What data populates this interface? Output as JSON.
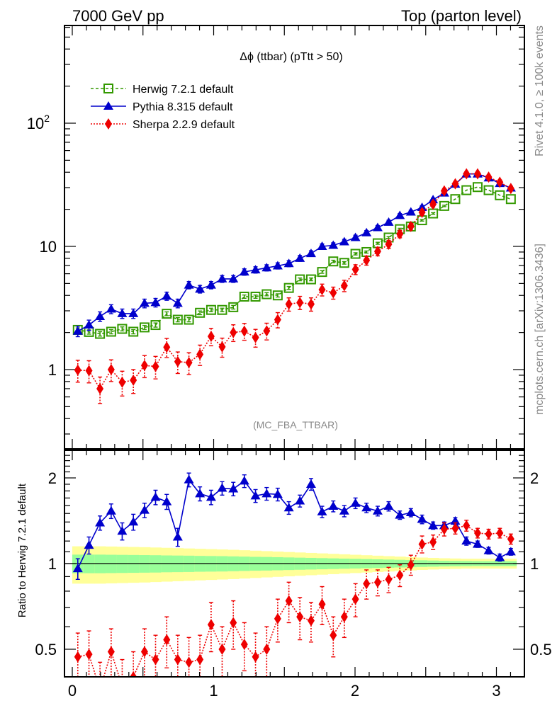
{
  "chart_data": [
    {
      "panel": "main",
      "type": "line",
      "title": "Δϕ (ttbar) (pTtt > 50)",
      "header_left": "7000 GeV pp",
      "header_right": "Top (parton level)",
      "analysis_label": "(MC_FBA_TTBAR)",
      "side_label_top": "Rivet 4.1.0, ≥ 100k events",
      "side_label_bottom": "mcplots.cern.ch [arXiv:1306.3436]",
      "xlabel": "",
      "ylabel": "",
      "xlim": [
        -0.06,
        3.2
      ],
      "ylim": [
        0.23,
        620
      ],
      "yscale": "log",
      "y_ticks": [
        {
          "value": 1,
          "label": "1"
        },
        {
          "value": 10,
          "label": "10"
        },
        {
          "value": 100,
          "label": "10",
          "sup": "2"
        }
      ],
      "legend_position": "top-left",
      "x": [
        0.039,
        0.118,
        0.196,
        0.275,
        0.353,
        0.432,
        0.511,
        0.589,
        0.668,
        0.746,
        0.825,
        0.903,
        0.982,
        1.06,
        1.139,
        1.217,
        1.296,
        1.375,
        1.453,
        1.532,
        1.61,
        1.689,
        1.767,
        1.846,
        1.924,
        2.003,
        2.081,
        2.16,
        2.238,
        2.317,
        2.395,
        2.474,
        2.552,
        2.631,
        2.709,
        2.788,
        2.867,
        2.945,
        3.024,
        3.102
      ],
      "series": [
        {
          "name": "Herwig 7.2.1 default",
          "color": "#339900",
          "marker": "open-square",
          "linestyle": "dashed",
          "values": [
            2.1,
            2.02,
            1.95,
            2.03,
            2.14,
            2.03,
            2.2,
            2.3,
            2.84,
            2.54,
            2.54,
            2.89,
            3.05,
            3.05,
            3.21,
            3.91,
            3.91,
            4.09,
            4.0,
            4.6,
            5.4,
            5.4,
            6.2,
            7.55,
            7.35,
            8.7,
            9.0,
            10.6,
            11.8,
            13.8,
            14.5,
            16.3,
            18.5,
            21.3,
            24.2,
            28.6,
            30.3,
            28.6,
            26.0,
            24.2
          ],
          "errors": [
            0.08,
            0.08,
            0.08,
            0.08,
            0.08,
            0.08,
            0.08,
            0.09,
            0.1,
            0.1,
            0.1,
            0.1,
            0.1,
            0.1,
            0.11,
            0.12,
            0.12,
            0.12,
            0.12,
            0.13,
            0.14,
            0.14,
            0.15,
            0.17,
            0.17,
            0.18,
            0.18,
            0.2,
            0.21,
            0.23,
            0.24,
            0.25,
            0.27,
            0.29,
            0.31,
            0.34,
            0.35,
            0.34,
            0.32,
            0.31
          ]
        },
        {
          "name": "Pythia 8.315 default",
          "color": "#0000cc",
          "marker": "filled-triangle",
          "linestyle": "solid",
          "values": [
            2.05,
            2.3,
            2.7,
            3.1,
            2.85,
            2.85,
            3.45,
            3.5,
            3.95,
            3.45,
            4.85,
            4.5,
            4.85,
            5.45,
            5.45,
            6.2,
            6.45,
            6.7,
            6.95,
            7.25,
            8.0,
            8.75,
            10.0,
            10.2,
            10.9,
            11.8,
            12.9,
            14.2,
            15.7,
            17.8,
            19.0,
            20.7,
            23.9,
            27.1,
            32.0,
            38.7,
            38.7,
            36.0,
            32.4,
            29.8
          ],
          "errors": [
            0.2,
            0.22,
            0.24,
            0.26,
            0.25,
            0.25,
            0.28,
            0.28,
            0.3,
            0.28,
            0.33,
            0.32,
            0.33,
            0.35,
            0.35,
            0.37,
            0.38,
            0.39,
            0.4,
            0.41,
            0.43,
            0.45,
            0.48,
            0.48,
            0.5,
            0.52,
            0.54,
            0.57,
            0.6,
            0.64,
            0.66,
            0.69,
            0.74,
            0.79,
            0.86,
            0.94,
            0.94,
            0.91,
            0.86,
            0.83
          ]
        },
        {
          "name": "Sherpa 2.2.9 default",
          "color": "#ee0000",
          "marker": "filled-diamond",
          "linestyle": "dotted",
          "values": [
            0.99,
            0.98,
            0.7,
            1.0,
            0.79,
            0.82,
            1.08,
            1.06,
            1.52,
            1.16,
            1.14,
            1.33,
            1.86,
            1.53,
            2.0,
            2.05,
            1.82,
            2.06,
            2.54,
            3.4,
            3.5,
            3.4,
            4.45,
            4.2,
            4.8,
            6.5,
            7.7,
            9.1,
            10.4,
            12.6,
            14.5,
            18.9,
            22.0,
            28.2,
            32.2,
            38.8,
            38.8,
            36.5,
            33.2,
            29.5
          ],
          "errors": [
            0.2,
            0.2,
            0.17,
            0.2,
            0.18,
            0.18,
            0.22,
            0.22,
            0.27,
            0.23,
            0.23,
            0.25,
            0.3,
            0.27,
            0.31,
            0.32,
            0.3,
            0.32,
            0.36,
            0.42,
            0.43,
            0.42,
            0.49,
            0.47,
            0.51,
            0.6,
            0.66,
            0.72,
            0.78,
            0.86,
            0.93,
            1.06,
            1.15,
            1.31,
            1.4,
            1.55,
            1.55,
            1.5,
            1.42,
            1.35
          ]
        }
      ]
    },
    {
      "panel": "ratio",
      "type": "line",
      "ylabel": "Ratio to Herwig 7.2.1 default",
      "xlabel": "",
      "xlim": [
        -0.06,
        3.2
      ],
      "ylim": [
        0.4,
        2.5
      ],
      "yscale": "log",
      "x_ticks": [
        {
          "value": 0,
          "label": "0"
        },
        {
          "value": 1,
          "label": "1"
        },
        {
          "value": 2,
          "label": "2"
        },
        {
          "value": 3,
          "label": "3"
        }
      ],
      "y_ticks": [
        {
          "value": 0.5,
          "label": "0.5"
        },
        {
          "value": 1,
          "label": "1"
        },
        {
          "value": 2,
          "label": "2"
        }
      ],
      "reference_line": 1,
      "band": {
        "green_color": "#99ff99",
        "yellow_color": "#ffff99",
        "green_halfwidth": [
          0.075,
          0.075,
          0.075,
          0.074,
          0.073,
          0.072,
          0.071,
          0.07,
          0.068,
          0.067,
          0.066,
          0.064,
          0.063,
          0.062,
          0.06,
          0.058,
          0.056,
          0.055,
          0.053,
          0.051,
          0.049,
          0.047,
          0.045,
          0.043,
          0.041,
          0.039,
          0.037,
          0.035,
          0.033,
          0.031,
          0.029,
          0.027,
          0.025,
          0.023,
          0.022,
          0.021,
          0.02,
          0.02,
          0.02,
          0.02
        ],
        "yellow_halfwidth": [
          0.15,
          0.15,
          0.15,
          0.148,
          0.146,
          0.144,
          0.142,
          0.139,
          0.136,
          0.133,
          0.13,
          0.127,
          0.124,
          0.121,
          0.118,
          0.114,
          0.11,
          0.106,
          0.102,
          0.098,
          0.094,
          0.09,
          0.086,
          0.082,
          0.078,
          0.074,
          0.07,
          0.066,
          0.062,
          0.058,
          0.054,
          0.05,
          0.047,
          0.044,
          0.042,
          0.04,
          0.04,
          0.04,
          0.04,
          0.04
        ]
      },
      "series": [
        {
          "name": "Pythia 8.315 default",
          "color": "#0000cc",
          "marker": "filled-triangle",
          "values": [
            0.96,
            1.16,
            1.39,
            1.53,
            1.3,
            1.4,
            1.54,
            1.71,
            1.65,
            1.24,
            1.97,
            1.76,
            1.71,
            1.84,
            1.83,
            1.95,
            1.73,
            1.76,
            1.75,
            1.57,
            1.66,
            1.9,
            1.52,
            1.59,
            1.53,
            1.63,
            1.57,
            1.53,
            1.59,
            1.48,
            1.51,
            1.43,
            1.36,
            1.36,
            1.41,
            1.2,
            1.17,
            1.11,
            1.05,
            1.1
          ],
          "errors": [
            0.08,
            0.08,
            0.08,
            0.09,
            0.09,
            0.09,
            0.09,
            0.1,
            0.1,
            0.09,
            0.11,
            0.1,
            0.1,
            0.1,
            0.1,
            0.1,
            0.09,
            0.09,
            0.09,
            0.08,
            0.08,
            0.09,
            0.07,
            0.07,
            0.07,
            0.07,
            0.06,
            0.06,
            0.06,
            0.05,
            0.05,
            0.05,
            0.04,
            0.04,
            0.04,
            0.04,
            0.03,
            0.03,
            0.03,
            0.03
          ]
        },
        {
          "name": "Sherpa 2.2.9 default",
          "color": "#ee0000",
          "marker": "filled-diamond",
          "values": [
            0.47,
            0.48,
            0.36,
            0.49,
            0.37,
            0.4,
            0.49,
            0.46,
            0.54,
            0.46,
            0.45,
            0.46,
            0.61,
            0.5,
            0.62,
            0.52,
            0.47,
            0.5,
            0.64,
            0.74,
            0.65,
            0.63,
            0.72,
            0.56,
            0.65,
            0.75,
            0.85,
            0.86,
            0.88,
            0.91,
            0.99,
            1.17,
            1.19,
            1.32,
            1.33,
            1.36,
            1.28,
            1.27,
            1.28,
            1.22
          ],
          "errors": [
            0.1,
            0.1,
            0.09,
            0.1,
            0.09,
            0.09,
            0.1,
            0.1,
            0.11,
            0.1,
            0.1,
            0.1,
            0.12,
            0.1,
            0.12,
            0.1,
            0.1,
            0.1,
            0.11,
            0.12,
            0.11,
            0.1,
            0.11,
            0.09,
            0.1,
            0.1,
            0.1,
            0.09,
            0.09,
            0.08,
            0.08,
            0.08,
            0.07,
            0.07,
            0.06,
            0.06,
            0.05,
            0.05,
            0.05,
            0.05
          ]
        }
      ]
    }
  ]
}
